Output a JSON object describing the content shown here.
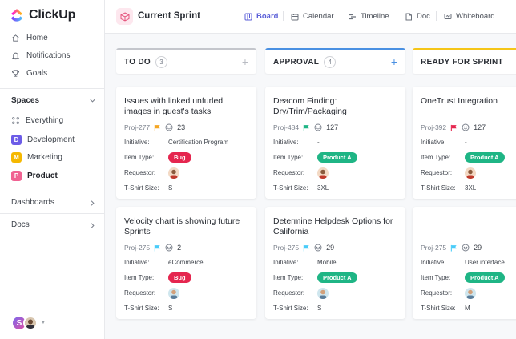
{
  "app": {
    "name": "ClickUp",
    "brand_color": "#7b68ee"
  },
  "sidebar": {
    "nav": [
      {
        "label": "Home",
        "icon": "home-icon"
      },
      {
        "label": "Notifications",
        "icon": "bell-icon"
      },
      {
        "label": "Goals",
        "icon": "trophy-icon"
      }
    ],
    "spaces_title": "Spaces",
    "spaces": [
      {
        "label": "Everything",
        "badge": "",
        "color": ""
      },
      {
        "label": "Development",
        "badge": "D",
        "color": "#6c5ce7"
      },
      {
        "label": "Marketing",
        "badge": "M",
        "color": "#f5b800"
      },
      {
        "label": "Product",
        "badge": "P",
        "color": "#f06292"
      }
    ],
    "dashboards": "Dashboards",
    "docs": "Docs",
    "user_initial": "S"
  },
  "topbar": {
    "title": "Current Sprint",
    "tabs": [
      {
        "label": "Board",
        "icon": "board-icon",
        "active": true
      },
      {
        "label": "Calendar",
        "icon": "calendar-icon"
      },
      {
        "label": "Timeline",
        "icon": "timeline-icon"
      },
      {
        "label": "Doc",
        "icon": "doc-icon"
      },
      {
        "label": "Whiteboard",
        "icon": "whiteboard-icon"
      }
    ]
  },
  "labels": {
    "initiative": "Initiative:",
    "item_type": "Item Type:",
    "requestor": "Requestor:",
    "tshirt": "T-Shirt Size:"
  },
  "columns": [
    {
      "title": "TO DO",
      "count": "3",
      "plus": "+",
      "accent": "#c4c6cc",
      "cards": [
        {
          "title": "Issues with linked unfurled images in guest's tasks",
          "id": "Proj-277",
          "flag": "#f5a623",
          "points": "23",
          "initiative": "Certification Program",
          "item_type": "Bug",
          "type_class": "bug",
          "tshirt": "S"
        },
        {
          "title": "Velocity chart is showing future Sprints",
          "id": "Proj-275",
          "flag": "#49ccf9",
          "points": "2",
          "initiative": "eCommerce",
          "item_type": "Bug",
          "type_class": "bug",
          "tshirt": "S"
        }
      ]
    },
    {
      "title": "APPROVAL",
      "count": "4",
      "plus": "+",
      "accent": "#4a90e2",
      "cards": [
        {
          "title": "Deacom Finding: Dry/Trim/Packaging",
          "id": "Proj-484",
          "flag": "#1fb585",
          "points": "127",
          "initiative": "-",
          "item_type": "Product A",
          "type_class": "product",
          "tshirt": "3XL"
        },
        {
          "title": "Determine Helpdesk Options for California",
          "id": "Proj-275",
          "flag": "#49ccf9",
          "points": "29",
          "initiative": "Mobile",
          "item_type": "Product A",
          "type_class": "product",
          "tshirt": "S"
        }
      ]
    },
    {
      "title": "READY FOR SPRINT",
      "count": "",
      "plus": "",
      "accent": "#f5c518",
      "cards": [
        {
          "title": "OneTrust Integration",
          "id": "Proj-392",
          "flag": "#e5264f",
          "points": "127",
          "initiative": "-",
          "item_type": "Product A",
          "type_class": "product",
          "tshirt": "3XL"
        },
        {
          "title": "",
          "id": "Proj-275",
          "flag": "#49ccf9",
          "points": "29",
          "initiative": "User interface",
          "item_type": "Product A",
          "type_class": "product",
          "tshirt": "M"
        }
      ]
    }
  ]
}
